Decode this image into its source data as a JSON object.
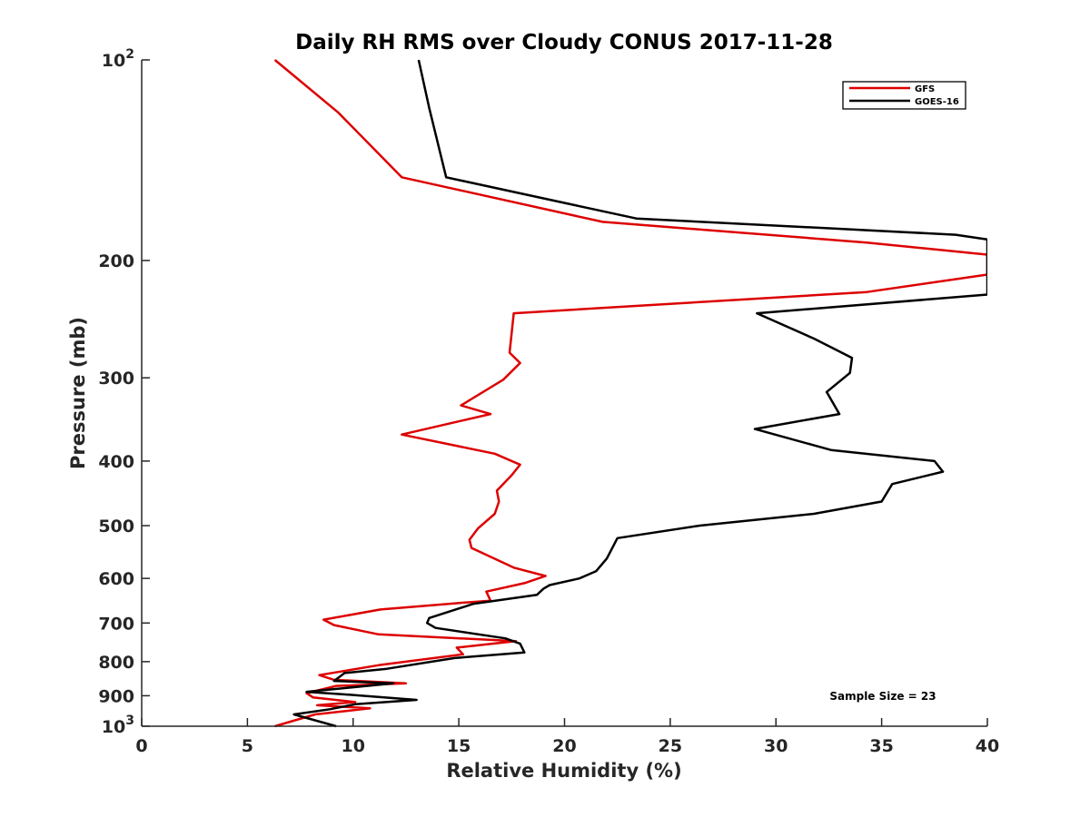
{
  "chart_data": {
    "type": "line",
    "title": "Daily RH RMS over Cloudy CONUS 2017-11-28",
    "xlabel": "Relative Humidity (%)",
    "ylabel": "Pressure (mb)",
    "xlim": [
      0,
      40
    ],
    "ylim": [
      100,
      1000
    ],
    "y_scale": "log",
    "y_reversed": true,
    "grid": false,
    "legend_position": "top-right",
    "x_ticks": [
      {
        "value": 0,
        "label": "0"
      },
      {
        "value": 5,
        "label": "5"
      },
      {
        "value": 10,
        "label": "10"
      },
      {
        "value": 15,
        "label": "15"
      },
      {
        "value": 20,
        "label": "20"
      },
      {
        "value": 25,
        "label": "25"
      },
      {
        "value": 30,
        "label": "30"
      },
      {
        "value": 35,
        "label": "35"
      },
      {
        "value": 40,
        "label": "40"
      }
    ],
    "y_ticks": [
      {
        "value": 100,
        "base": "10",
        "exp": "2"
      },
      {
        "value": 200,
        "label": "200"
      },
      {
        "value": 300,
        "label": "300"
      },
      {
        "value": 400,
        "label": "400"
      },
      {
        "value": 500,
        "label": "500"
      },
      {
        "value": 600,
        "label": "600"
      },
      {
        "value": 700,
        "label": "700"
      },
      {
        "value": 800,
        "label": "800"
      },
      {
        "value": 900,
        "label": "900"
      },
      {
        "value": 1000,
        "base": "10",
        "exp": "3"
      }
    ],
    "annotation": "Sample Size = 23",
    "series": [
      {
        "name": "GFS",
        "color": "#dd0000",
        "points": [
          [
            6.3,
            100
          ],
          [
            9.3,
            120
          ],
          [
            12.3,
            150
          ],
          [
            21.8,
            175
          ],
          [
            34.3,
            188
          ],
          [
            40.0,
            196
          ],
          [
            40.0,
            210
          ],
          [
            34.3,
            223
          ],
          [
            17.6,
            240
          ],
          [
            17.4,
            275
          ],
          [
            17.9,
            285
          ],
          [
            17.1,
            302
          ],
          [
            15.1,
            330
          ],
          [
            16.5,
            340
          ],
          [
            12.3,
            365
          ],
          [
            16.7,
            390
          ],
          [
            17.9,
            405
          ],
          [
            17.5,
            420
          ],
          [
            16.8,
            443
          ],
          [
            16.9,
            460
          ],
          [
            16.7,
            480
          ],
          [
            15.9,
            505
          ],
          [
            15.5,
            525
          ],
          [
            15.6,
            540
          ],
          [
            17.6,
            578
          ],
          [
            19.1,
            595
          ],
          [
            18.1,
            610
          ],
          [
            16.3,
            628
          ],
          [
            16.5,
            648
          ],
          [
            15.3,
            652
          ],
          [
            11.3,
            668
          ],
          [
            8.6,
            692
          ],
          [
            9.1,
            705
          ],
          [
            11.2,
            728
          ],
          [
            17.7,
            745
          ],
          [
            14.9,
            762
          ],
          [
            15.2,
            780
          ],
          [
            11.2,
            810
          ],
          [
            8.4,
            838
          ],
          [
            9.1,
            852
          ],
          [
            12.5,
            862
          ],
          [
            9.2,
            870
          ],
          [
            7.8,
            892
          ],
          [
            8.1,
            905
          ],
          [
            10.1,
            920
          ],
          [
            8.3,
            930
          ],
          [
            10.8,
            940
          ],
          [
            8.2,
            960
          ],
          [
            6.3,
            1000
          ]
        ]
      },
      {
        "name": "GOES-16",
        "color": "#000000",
        "points": [
          [
            13.1,
            100
          ],
          [
            13.6,
            118
          ],
          [
            14.4,
            150
          ],
          [
            23.4,
            173
          ],
          [
            38.5,
            183
          ],
          [
            40.0,
            186
          ],
          [
            40.0,
            225
          ],
          [
            29.1,
            240
          ],
          [
            31.8,
            262
          ],
          [
            33.6,
            280
          ],
          [
            33.5,
            295
          ],
          [
            32.4,
            315
          ],
          [
            33.0,
            340
          ],
          [
            29.0,
            358
          ],
          [
            32.6,
            385
          ],
          [
            37.5,
            400
          ],
          [
            37.9,
            415
          ],
          [
            35.5,
            433
          ],
          [
            35.0,
            460
          ],
          [
            31.8,
            480
          ],
          [
            26.4,
            500
          ],
          [
            22.5,
            522
          ],
          [
            22.0,
            560
          ],
          [
            21.5,
            585
          ],
          [
            20.7,
            600
          ],
          [
            19.3,
            614
          ],
          [
            19.0,
            622
          ],
          [
            18.7,
            635
          ],
          [
            15.7,
            655
          ],
          [
            13.6,
            688
          ],
          [
            13.5,
            700
          ],
          [
            13.9,
            712
          ],
          [
            17.2,
            738
          ],
          [
            17.9,
            752
          ],
          [
            18.1,
            775
          ],
          [
            14.8,
            790
          ],
          [
            11.6,
            820
          ],
          [
            9.6,
            832
          ],
          [
            9.1,
            855
          ],
          [
            11.9,
            862
          ],
          [
            7.8,
            888
          ],
          [
            9.8,
            897
          ],
          [
            13.0,
            913
          ],
          [
            10.1,
            927
          ],
          [
            8.9,
            943
          ],
          [
            7.2,
            960
          ],
          [
            9.2,
            1000
          ]
        ]
      }
    ]
  }
}
